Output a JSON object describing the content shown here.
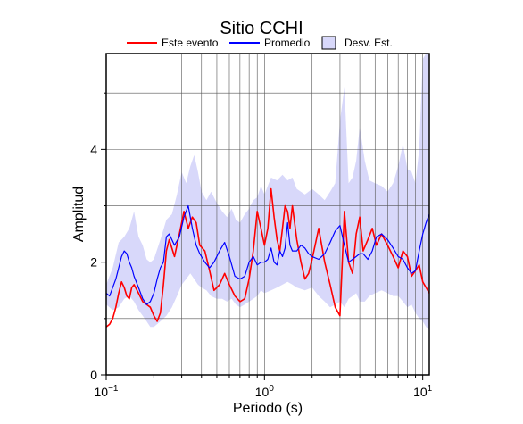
{
  "chart_data": {
    "type": "line",
    "title": "Sitio CCHI",
    "xlabel": "Periodo (s)",
    "ylabel": "Amplitud",
    "x_scale": "log",
    "xlim": [
      0.1,
      11
    ],
    "ylim": [
      0,
      5.7
    ],
    "x_ticks": [
      {
        "value": 0.1,
        "base": "10",
        "exp": "−1"
      },
      {
        "value": 1,
        "base": "10",
        "exp": "0"
      },
      {
        "value": 10,
        "base": "10",
        "exp": "1"
      }
    ],
    "y_ticks": [
      "0",
      "2",
      "4"
    ],
    "grid": true,
    "legend_position": "top",
    "legend": {
      "event": "Este evento",
      "mean": "Promedio",
      "std": "Desv. Est."
    },
    "colors": {
      "event": "#ff0000",
      "mean": "#0000ff",
      "std_fill": "#d8d8fa"
    },
    "series": [
      {
        "name": "Este evento",
        "x": [
          0.1,
          0.105,
          0.11,
          0.115,
          0.12,
          0.125,
          0.13,
          0.135,
          0.14,
          0.145,
          0.15,
          0.16,
          0.17,
          0.18,
          0.19,
          0.2,
          0.21,
          0.22,
          0.23,
          0.24,
          0.25,
          0.27,
          0.29,
          0.31,
          0.33,
          0.35,
          0.37,
          0.39,
          0.42,
          0.45,
          0.48,
          0.52,
          0.56,
          0.6,
          0.65,
          0.7,
          0.75,
          0.8,
          0.85,
          0.9,
          0.95,
          1.0,
          1.05,
          1.1,
          1.15,
          1.2,
          1.25,
          1.3,
          1.35,
          1.4,
          1.45,
          1.5,
          1.6,
          1.7,
          1.8,
          1.9,
          2.0,
          2.2,
          2.4,
          2.6,
          2.8,
          3.0,
          3.2,
          3.4,
          3.6,
          3.8,
          4.0,
          4.2,
          4.5,
          4.8,
          5.1,
          5.5,
          6.0,
          6.5,
          7.0,
          7.5,
          8.0,
          8.5,
          9.0,
          9.5,
          10.0,
          10.5,
          11.0
        ],
        "values": [
          0.85,
          0.9,
          1.0,
          1.2,
          1.45,
          1.65,
          1.55,
          1.4,
          1.35,
          1.55,
          1.6,
          1.45,
          1.3,
          1.25,
          1.2,
          1.05,
          0.95,
          1.1,
          1.6,
          2.2,
          2.4,
          2.1,
          2.5,
          2.9,
          2.6,
          2.8,
          2.7,
          2.3,
          2.2,
          1.85,
          1.5,
          1.6,
          1.8,
          1.6,
          1.4,
          1.3,
          1.35,
          1.7,
          2.2,
          2.9,
          2.6,
          2.3,
          2.6,
          3.3,
          2.8,
          2.4,
          2.2,
          2.6,
          3.0,
          2.9,
          2.6,
          3.0,
          2.4,
          2.0,
          1.7,
          1.8,
          2.05,
          2.6,
          2.0,
          1.6,
          1.2,
          1.05,
          2.9,
          2.0,
          1.8,
          2.5,
          2.8,
          2.2,
          2.4,
          2.6,
          2.3,
          2.5,
          2.3,
          2.1,
          1.9,
          2.2,
          2.1,
          1.75,
          1.85,
          1.95,
          1.65,
          1.55,
          1.45
        ]
      },
      {
        "name": "Promedio",
        "x": [
          0.1,
          0.105,
          0.11,
          0.115,
          0.12,
          0.125,
          0.13,
          0.135,
          0.14,
          0.145,
          0.15,
          0.16,
          0.17,
          0.18,
          0.19,
          0.2,
          0.21,
          0.22,
          0.23,
          0.24,
          0.25,
          0.27,
          0.29,
          0.31,
          0.33,
          0.35,
          0.37,
          0.39,
          0.42,
          0.45,
          0.48,
          0.52,
          0.56,
          0.6,
          0.65,
          0.7,
          0.75,
          0.8,
          0.85,
          0.9,
          0.95,
          1.0,
          1.05,
          1.1,
          1.15,
          1.2,
          1.25,
          1.3,
          1.35,
          1.4,
          1.45,
          1.5,
          1.6,
          1.7,
          1.8,
          1.9,
          2.0,
          2.2,
          2.4,
          2.6,
          2.8,
          3.0,
          3.2,
          3.4,
          3.6,
          3.8,
          4.0,
          4.2,
          4.5,
          4.8,
          5.1,
          5.5,
          6.0,
          6.5,
          7.0,
          7.5,
          8.0,
          8.5,
          9.0,
          9.5,
          10.0,
          10.5,
          11.0
        ],
        "values": [
          1.45,
          1.4,
          1.55,
          1.7,
          1.9,
          2.1,
          2.2,
          2.15,
          2.0,
          1.9,
          1.75,
          1.55,
          1.35,
          1.25,
          1.3,
          1.45,
          1.7,
          1.9,
          2.0,
          2.45,
          2.5,
          2.3,
          2.45,
          2.8,
          3.0,
          2.6,
          2.3,
          2.15,
          2.0,
          1.9,
          2.0,
          2.2,
          2.35,
          2.1,
          1.75,
          1.7,
          1.75,
          2.0,
          2.1,
          1.95,
          2.0,
          2.0,
          2.05,
          2.25,
          2.0,
          1.95,
          2.2,
          2.1,
          2.25,
          2.7,
          2.3,
          2.2,
          2.2,
          2.3,
          2.25,
          2.15,
          2.1,
          2.05,
          2.15,
          2.35,
          2.55,
          2.65,
          2.3,
          2.0,
          2.05,
          2.1,
          2.15,
          2.15,
          2.05,
          2.2,
          2.45,
          2.5,
          2.4,
          2.25,
          2.1,
          2.05,
          1.9,
          1.8,
          1.85,
          2.2,
          2.5,
          2.7,
          2.85
        ]
      }
    ],
    "std_band": {
      "x": [
        0.1,
        0.11,
        0.12,
        0.13,
        0.14,
        0.15,
        0.16,
        0.17,
        0.18,
        0.19,
        0.2,
        0.22,
        0.24,
        0.26,
        0.28,
        0.3,
        0.32,
        0.34,
        0.36,
        0.38,
        0.4,
        0.43,
        0.46,
        0.5,
        0.54,
        0.58,
        0.62,
        0.66,
        0.7,
        0.75,
        0.8,
        0.85,
        0.9,
        0.95,
        1.0,
        1.1,
        1.2,
        1.3,
        1.4,
        1.5,
        1.6,
        1.8,
        2.0,
        2.2,
        2.4,
        2.6,
        2.8,
        3.0,
        3.2,
        3.4,
        3.6,
        3.8,
        4.0,
        4.3,
        4.6,
        5.0,
        5.5,
        6.0,
        6.5,
        7.0,
        7.5,
        8.0,
        8.5,
        9.0,
        9.5,
        10.0,
        10.5,
        11.0
      ],
      "upper": [
        1.6,
        1.9,
        2.35,
        2.45,
        2.6,
        2.9,
        2.45,
        2.3,
        2.05,
        2.0,
        2.05,
        2.4,
        2.75,
        2.85,
        3.2,
        3.6,
        3.4,
        3.7,
        3.9,
        3.6,
        3.25,
        3.1,
        3.25,
        3.05,
        2.9,
        2.8,
        2.95,
        2.75,
        2.7,
        2.85,
        2.95,
        3.1,
        3.15,
        3.35,
        3.2,
        3.5,
        3.45,
        3.55,
        3.45,
        3.5,
        3.3,
        3.2,
        3.3,
        3.2,
        3.1,
        3.25,
        3.4,
        4.5,
        5.1,
        3.4,
        3.5,
        3.8,
        4.4,
        3.8,
        3.45,
        3.4,
        3.35,
        3.25,
        3.4,
        3.7,
        4.1,
        3.65,
        3.6,
        3.4,
        4.0,
        5.6,
        5.7,
        5.7
      ],
      "lower": [
        1.25,
        1.15,
        1.2,
        1.35,
        1.4,
        1.3,
        1.15,
        1.05,
        0.95,
        0.85,
        0.85,
        0.95,
        1.05,
        1.2,
        1.4,
        1.6,
        1.7,
        1.8,
        1.7,
        1.6,
        1.55,
        1.5,
        1.4,
        1.35,
        1.35,
        1.3,
        1.35,
        1.25,
        1.2,
        1.25,
        1.3,
        1.35,
        1.4,
        1.5,
        1.45,
        1.5,
        1.55,
        1.6,
        1.65,
        1.6,
        1.55,
        1.5,
        1.55,
        1.4,
        1.3,
        1.2,
        1.25,
        1.3,
        1.2,
        1.35,
        1.4,
        1.45,
        1.3,
        1.3,
        1.4,
        1.45,
        1.5,
        1.45,
        1.4,
        1.4,
        1.3,
        1.2,
        1.25,
        1.1,
        1.0,
        0.95,
        0.85,
        0.8
      ]
    }
  }
}
